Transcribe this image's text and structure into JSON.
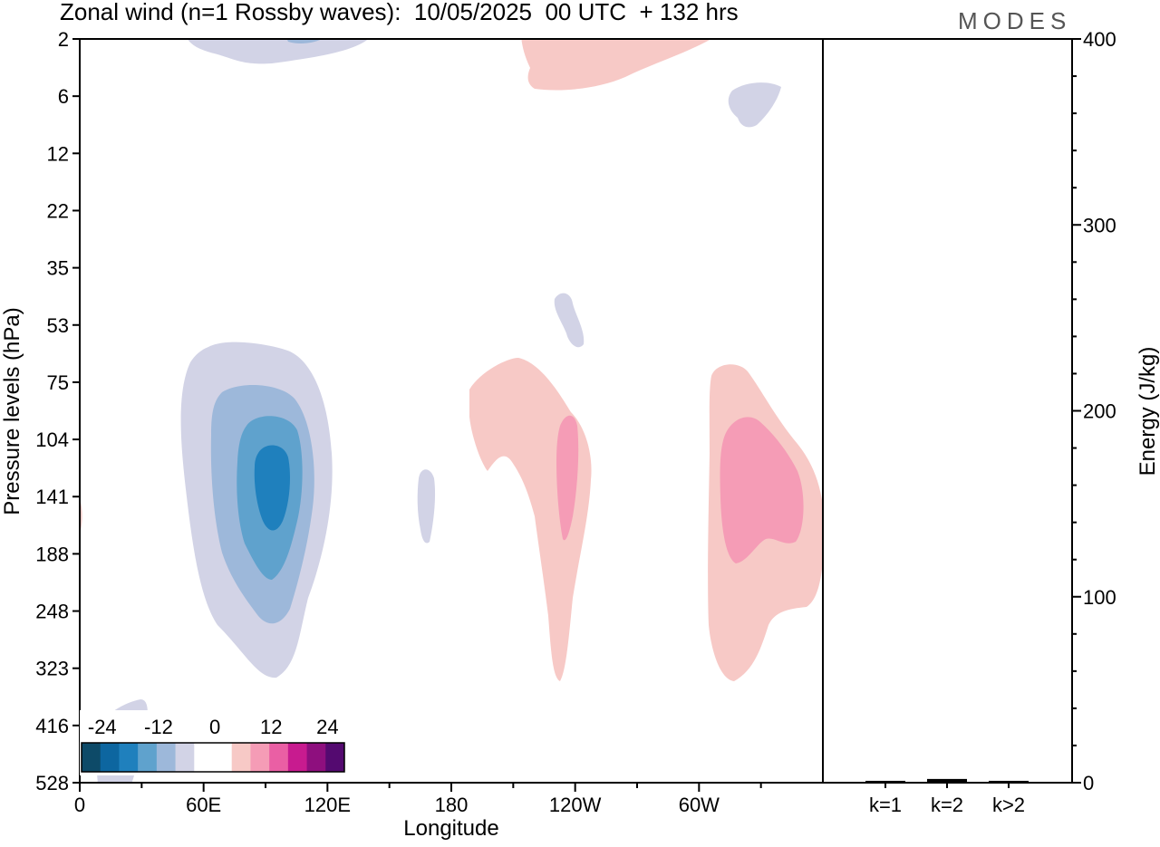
{
  "header": {
    "title": "Zonal wind (n=1 Rossby waves):  10/05/2025  00 UTC  + 132 hrs",
    "logo": "MODES"
  },
  "chart_data": [
    {
      "type": "contour",
      "xlabel": "Longitude",
      "ylabel": "Pressure levels (hPa)",
      "x_ticks": [
        "0",
        "60E",
        "120E",
        "180",
        "120W",
        "60W"
      ],
      "y_ticks": [
        "2",
        "6",
        "12",
        "22",
        "35",
        "53",
        "75",
        "104",
        "141",
        "188",
        "248",
        "323",
        "416",
        "528"
      ],
      "colorbar": {
        "labels": [
          "-24",
          "-12",
          "0",
          "12",
          "24"
        ],
        "colors": [
          "#0d4a68",
          "#0d66a0",
          "#1f80bd",
          "#5fa2cd",
          "#9db8da",
          "#d2d3e6",
          "#ffffff",
          "#ffffff",
          "#f7c9c6",
          "#f59cb6",
          "#ea5fa4",
          "#c81b8f",
          "#8e0f7e",
          "#540a70"
        ]
      },
      "features": [
        {
          "sign": "negative",
          "lon_center": 90,
          "level_center": "141",
          "min_value": -24
        },
        {
          "sign": "positive",
          "lon_center": 245,
          "level_center": "141",
          "max_value": 12
        },
        {
          "sign": "positive",
          "lon_center": 320,
          "level_center": "141",
          "max_value": 12
        }
      ]
    },
    {
      "type": "bar",
      "categories": [
        "k=1",
        "k=2",
        "k>2"
      ],
      "values": [
        1,
        2,
        1
      ],
      "ylabel": "Energy (J/kg)",
      "ylim": [
        0,
        400
      ],
      "y_ticks": [
        "0",
        "100",
        "200",
        "300",
        "400"
      ]
    }
  ]
}
